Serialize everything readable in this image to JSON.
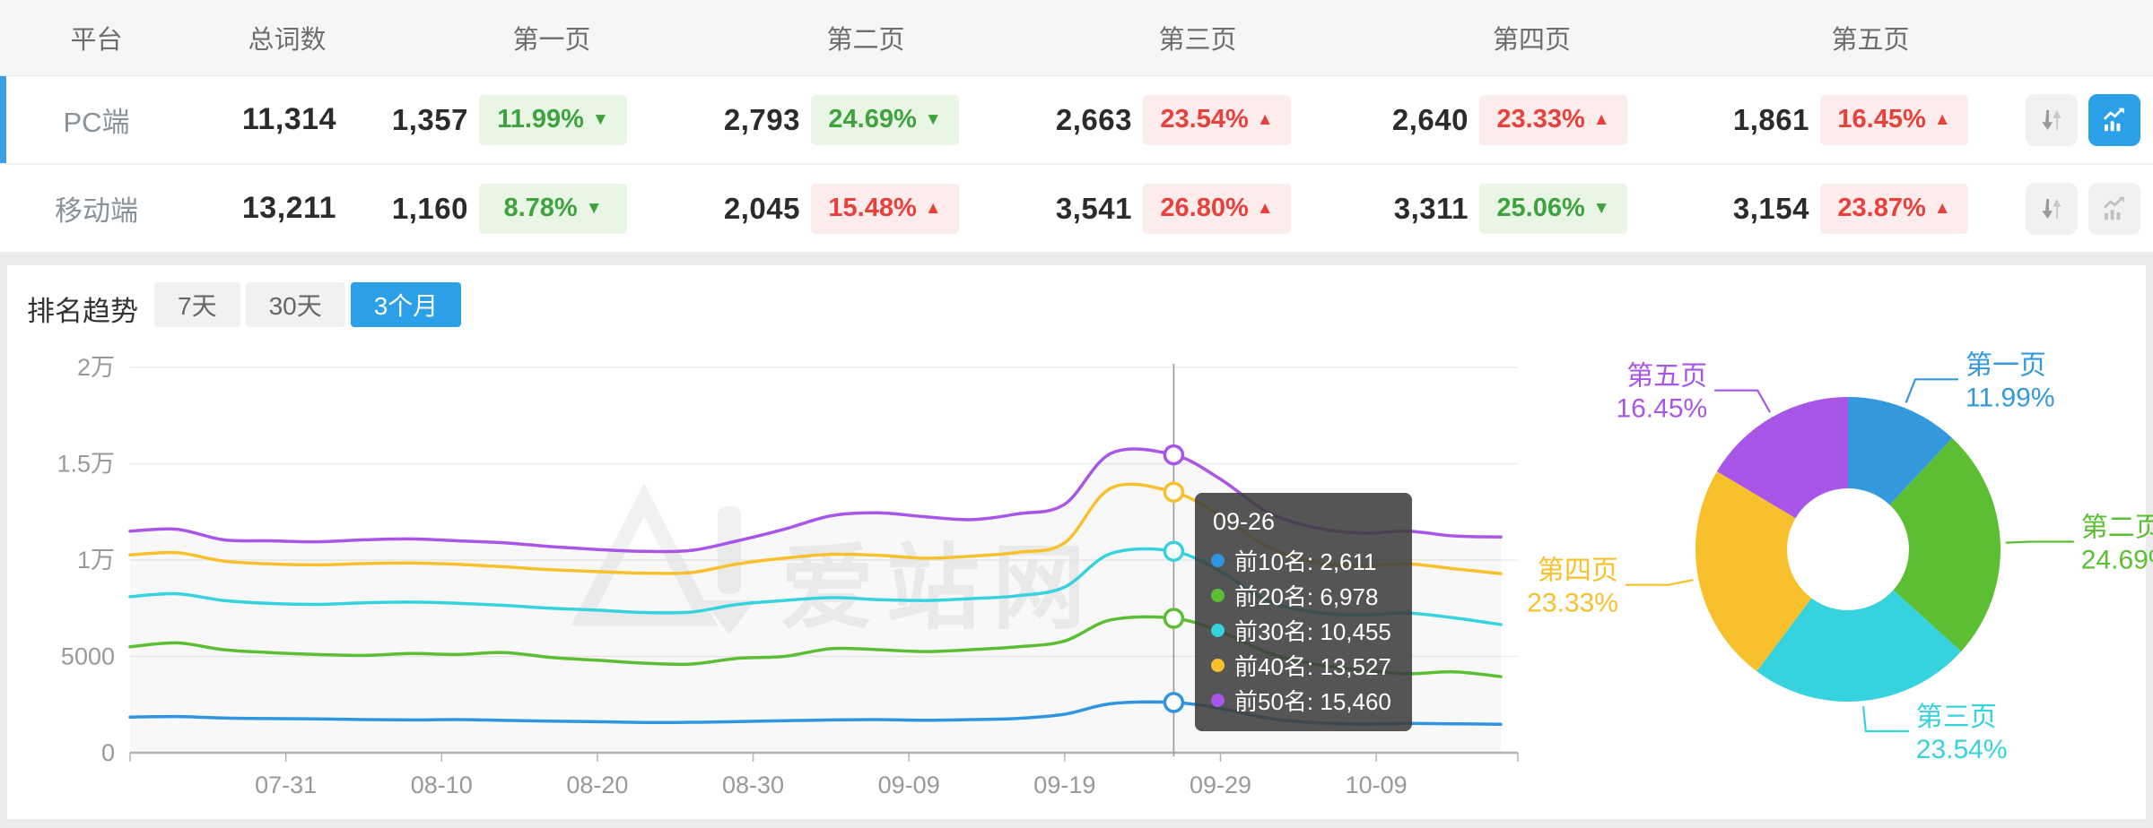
{
  "colors": {
    "accent_blue": "#2b9fe8",
    "badge_green_text": "#3ea23e",
    "badge_green_bg": "#eaf6e5",
    "badge_red_text": "#e8413c",
    "badge_red_bg": "#fcecec"
  },
  "table": {
    "headers": {
      "platform": "平台",
      "total": "总词数",
      "pages": [
        "第一页",
        "第二页",
        "第三页",
        "第四页",
        "第五页"
      ]
    },
    "rows": [
      {
        "platform": "PC端",
        "total": "11,314",
        "selected": true,
        "pages": [
          {
            "count": "1,357",
            "pct": "11.99%",
            "dir": "down",
            "tone": "green"
          },
          {
            "count": "2,793",
            "pct": "24.69%",
            "dir": "down",
            "tone": "green"
          },
          {
            "count": "2,663",
            "pct": "23.54%",
            "dir": "up",
            "tone": "red"
          },
          {
            "count": "2,640",
            "pct": "23.33%",
            "dir": "up",
            "tone": "red"
          },
          {
            "count": "1,861",
            "pct": "16.45%",
            "dir": "up",
            "tone": "red"
          }
        ],
        "chart_button_active": true
      },
      {
        "platform": "移动端",
        "total": "13,211",
        "selected": false,
        "pages": [
          {
            "count": "1,160",
            "pct": "8.78%",
            "dir": "down",
            "tone": "green"
          },
          {
            "count": "2,045",
            "pct": "15.48%",
            "dir": "up",
            "tone": "red"
          },
          {
            "count": "3,541",
            "pct": "26.80%",
            "dir": "up",
            "tone": "red"
          },
          {
            "count": "3,311",
            "pct": "25.06%",
            "dir": "down",
            "tone": "green"
          },
          {
            "count": "3,154",
            "pct": "23.87%",
            "dir": "up",
            "tone": "red"
          }
        ],
        "chart_button_active": false
      }
    ]
  },
  "trend": {
    "title": "排名趋势",
    "tabs": [
      {
        "label": "7天",
        "active": false
      },
      {
        "label": "30天",
        "active": false
      },
      {
        "label": "3个月",
        "active": true
      }
    ]
  },
  "watermark": "爱站网",
  "tooltip": {
    "date": "09-26",
    "items": [
      {
        "label": "前10名",
        "value": "2,611",
        "color": "#3095e0"
      },
      {
        "label": "前20名",
        "value": "6,978",
        "color": "#5cbe33"
      },
      {
        "label": "前30名",
        "value": "10,455",
        "color": "#36d2de"
      },
      {
        "label": "前40名",
        "value": "13,527",
        "color": "#f7c02c"
      },
      {
        "label": "前50名",
        "value": "15,460",
        "color": "#a956e8"
      }
    ]
  },
  "chart_data": [
    {
      "type": "line",
      "title": "排名趋势（3个月）",
      "x": [
        "07-21",
        "07-24",
        "07-27",
        "07-30",
        "08-02",
        "08-05",
        "08-08",
        "08-11",
        "08-14",
        "08-17",
        "08-20",
        "08-23",
        "08-26",
        "08-29",
        "09-01",
        "09-04",
        "09-07",
        "09-10",
        "09-13",
        "09-16",
        "09-19",
        "09-22",
        "09-26",
        "09-29",
        "10-02",
        "10-05",
        "10-08",
        "10-11",
        "10-14",
        "10-17"
      ],
      "x_tick_labels": [
        "07-31",
        "08-10",
        "08-20",
        "08-30",
        "09-09",
        "09-19",
        "09-29",
        "10-09"
      ],
      "y_tick_labels": [
        "0",
        "5000",
        "1万",
        "1.5万",
        "2万"
      ],
      "ylim": [
        0,
        20000
      ],
      "grid": true,
      "highlight_x": "09-26",
      "series": [
        {
          "name": "前10名",
          "color": "#3095e0",
          "values": [
            1850,
            1880,
            1800,
            1770,
            1760,
            1720,
            1700,
            1720,
            1680,
            1640,
            1610,
            1570,
            1580,
            1620,
            1660,
            1700,
            1720,
            1690,
            1720,
            1780,
            2000,
            2550,
            2611,
            2300,
            1800,
            1560,
            1500,
            1520,
            1500,
            1480
          ]
        },
        {
          "name": "前20名",
          "color": "#5cbe33",
          "values": [
            5500,
            5700,
            5350,
            5200,
            5100,
            5050,
            5150,
            5100,
            5200,
            4950,
            4800,
            4650,
            4600,
            4900,
            5000,
            5400,
            5350,
            5250,
            5350,
            5500,
            5800,
            6900,
            6978,
            6300,
            5200,
            4600,
            4300,
            4100,
            4200,
            3950
          ]
        },
        {
          "name": "前30名",
          "color": "#36d2de",
          "values": [
            8100,
            8250,
            7900,
            7750,
            7700,
            7780,
            7820,
            7760,
            7650,
            7500,
            7400,
            7280,
            7300,
            7700,
            7900,
            8050,
            7950,
            7900,
            8000,
            8150,
            8600,
            10350,
            10455,
            9400,
            7900,
            7300,
            7150,
            7250,
            7000,
            6650
          ]
        },
        {
          "name": "前40名",
          "color": "#f7c02c",
          "values": [
            10270,
            10380,
            9950,
            9800,
            9750,
            9820,
            9850,
            9780,
            9650,
            9500,
            9400,
            9320,
            9350,
            9800,
            10100,
            10300,
            10250,
            10100,
            10200,
            10400,
            10900,
            13750,
            13527,
            12300,
            10700,
            9900,
            9700,
            9800,
            9550,
            9300
          ]
        },
        {
          "name": "前50名",
          "color": "#a956e8",
          "values": [
            11500,
            11600,
            11050,
            11000,
            10950,
            11050,
            11100,
            11000,
            10900,
            10700,
            10550,
            10450,
            10500,
            11000,
            11600,
            12300,
            12450,
            12250,
            12100,
            12400,
            12900,
            15550,
            15460,
            14200,
            12500,
            11700,
            11400,
            11500,
            11250,
            11200
          ]
        }
      ]
    },
    {
      "type": "pie",
      "donut": true,
      "start_angle_deg": 0,
      "clockwise": true,
      "slices": [
        {
          "label": "第一页",
          "value": 11.99,
          "color": "#3398dc"
        },
        {
          "label": "第二页",
          "value": 24.69,
          "color": "#5cbe33"
        },
        {
          "label": "第三页",
          "value": 23.54,
          "color": "#36d2de"
        },
        {
          "label": "第四页",
          "value": 23.33,
          "color": "#f7c02c"
        },
        {
          "label": "第五页",
          "value": 16.45,
          "color": "#a956e8"
        }
      ]
    }
  ]
}
